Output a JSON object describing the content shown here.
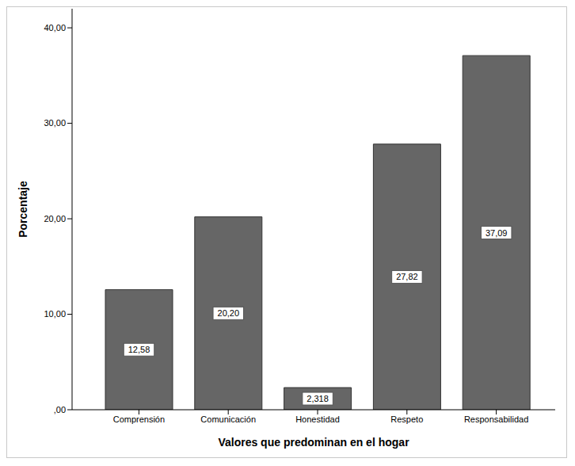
{
  "chart_data": {
    "type": "bar",
    "categories": [
      "Comprensión",
      "Comunicación",
      "Honestidad",
      "Respeto",
      "Responsabilidad"
    ],
    "values": [
      12.58,
      20.2,
      2.318,
      27.82,
      37.09
    ],
    "value_labels": [
      "12,58",
      "20,20",
      "2,318",
      "27,82",
      "37,09"
    ],
    "data_labels": true,
    "color": "#666666",
    "ylim": [
      0,
      42
    ],
    "yticks": [
      {
        "value": 0,
        "label": ",00"
      },
      {
        "value": 10,
        "label": "10,00"
      },
      {
        "value": 20,
        "label": "20,00"
      },
      {
        "value": 30,
        "label": "30,00"
      },
      {
        "value": 40,
        "label": "40,00"
      }
    ],
    "x_label": "Valores que predominan en el hogar",
    "y_label": "Porcentaje",
    "grid": false
  }
}
